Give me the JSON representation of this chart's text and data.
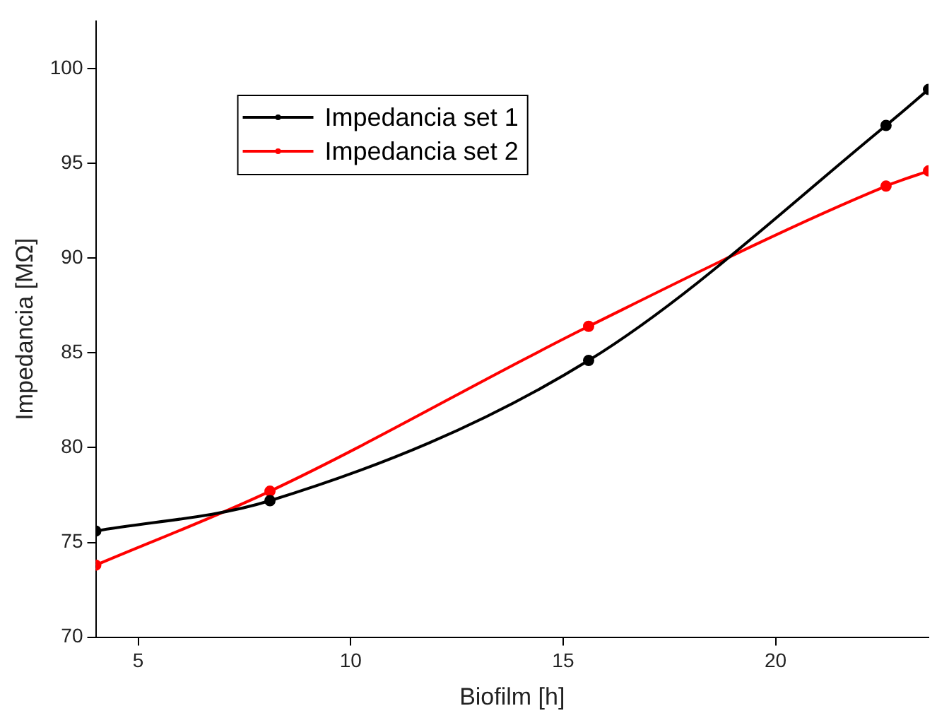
{
  "chart_data": {
    "type": "line",
    "xlabel": "Biofilm [h]",
    "ylabel": "Impedancia [MΩ]",
    "xlim": [
      4,
      23.6
    ],
    "xticks": [
      5,
      10,
      15,
      20
    ],
    "ylim": [
      70,
      102.5
    ],
    "yticks": [
      70,
      75,
      80,
      85,
      90,
      95,
      100
    ],
    "grid": false,
    "legend": "top left",
    "marker": "circle",
    "line_style": "solid",
    "series": [
      {
        "name": "Impedancia set 1",
        "color": "#000000",
        "x": [
          4,
          8.1,
          15.6,
          22.6,
          23.6
        ],
        "values": [
          75.6,
          77.2,
          84.6,
          97.0,
          98.9
        ]
      },
      {
        "name": "Impedancia set 2",
        "color": "#ff0000",
        "x": [
          4,
          8.1,
          15.6,
          22.6,
          23.6
        ],
        "values": [
          73.8,
          77.7,
          86.4,
          93.8,
          94.6
        ]
      }
    ]
  }
}
